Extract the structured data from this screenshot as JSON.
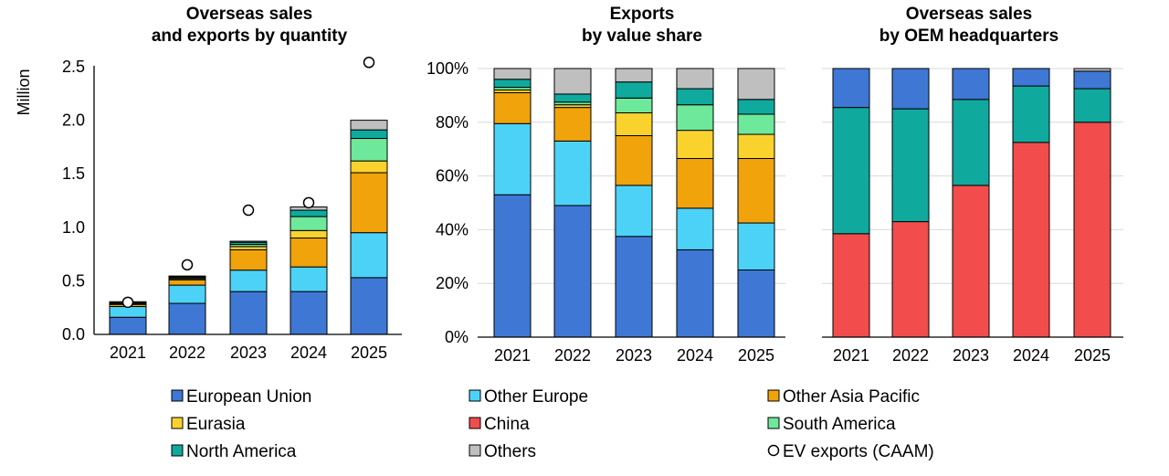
{
  "colors": {
    "european_union": "#3E78D4",
    "other_europe": "#4DD2F7",
    "other_asia_pacific": "#F0A30A",
    "eurasia": "#FAD22E",
    "china": "#F24C4C",
    "south_america": "#6EE89A",
    "north_america": "#10A99E",
    "others": "#BFBFBF",
    "ev_marker_fill": "#FFFFFF",
    "ev_marker_stroke": "#000000",
    "axis": "#000000",
    "grid": "#D9D9D9"
  },
  "legend": [
    {
      "label": "European Union",
      "color_key": "european_union",
      "kind": "square"
    },
    {
      "label": "Other Europe",
      "color_key": "other_europe",
      "kind": "square"
    },
    {
      "label": "Other Asia Pacific",
      "color_key": "other_asia_pacific",
      "kind": "square"
    },
    {
      "label": "Eurasia",
      "color_key": "eurasia",
      "kind": "square"
    },
    {
      "label": "China",
      "color_key": "china",
      "kind": "square"
    },
    {
      "label": "South America",
      "color_key": "south_america",
      "kind": "square"
    },
    {
      "label": "North America",
      "color_key": "north_america",
      "kind": "square"
    },
    {
      "label": "Others",
      "color_key": "others",
      "kind": "square"
    },
    {
      "label": "EV exports (CAAM)",
      "color_key": "ev_marker_fill",
      "kind": "circle"
    }
  ],
  "chart_data": [
    {
      "type": "bar",
      "stacked": true,
      "title_lines": [
        "Overseas sales",
        "and exports by quantity"
      ],
      "ylabel": "Million",
      "ylim": [
        0,
        2.5
      ],
      "yticks": [
        0.0,
        0.5,
        1.0,
        1.5,
        2.0,
        2.5
      ],
      "ytick_labels": [
        "0.0",
        "0.5",
        "1.0",
        "1.5",
        "2.0",
        "2.5"
      ],
      "grid": false,
      "categories": [
        "2021",
        "2022",
        "2023",
        "2024",
        "2025"
      ],
      "series": [
        {
          "name": "European Union",
          "color_key": "european_union",
          "values": [
            0.16,
            0.29,
            0.4,
            0.4,
            0.53
          ]
        },
        {
          "name": "Other Europe",
          "color_key": "other_europe",
          "values": [
            0.1,
            0.17,
            0.2,
            0.23,
            0.42
          ]
        },
        {
          "name": "Other Asia Pacific",
          "color_key": "other_asia_pacific",
          "values": [
            0.02,
            0.05,
            0.19,
            0.27,
            0.56
          ]
        },
        {
          "name": "Eurasia",
          "color_key": "eurasia",
          "values": [
            0.005,
            0.01,
            0.03,
            0.07,
            0.11
          ]
        },
        {
          "name": "South America",
          "color_key": "south_america",
          "values": [
            0.005,
            0.01,
            0.02,
            0.13,
            0.21
          ]
        },
        {
          "name": "North America",
          "color_key": "north_america",
          "values": [
            0.01,
            0.01,
            0.02,
            0.06,
            0.08
          ]
        },
        {
          "name": "Others",
          "color_key": "others",
          "values": [
            0.005,
            0.005,
            0.01,
            0.03,
            0.09
          ]
        }
      ],
      "markers": {
        "name": "EV exports (CAAM)",
        "values": [
          0.3,
          0.65,
          1.16,
          1.23,
          2.54
        ]
      }
    },
    {
      "type": "bar",
      "stacked": true,
      "percent": true,
      "title_lines": [
        "Exports",
        "by value share"
      ],
      "ylabel": "",
      "ylim": [
        0,
        100
      ],
      "yticks": [
        0,
        20,
        40,
        60,
        80,
        100
      ],
      "ytick_labels": [
        "0%",
        "20%",
        "40%",
        "60%",
        "80%",
        "100%"
      ],
      "grid": true,
      "categories": [
        "2021",
        "2022",
        "2023",
        "2024",
        "2025"
      ],
      "series": [
        {
          "name": "European Union",
          "color_key": "european_union",
          "values": [
            53,
            49,
            37.5,
            32.5,
            25
          ]
        },
        {
          "name": "Other Europe",
          "color_key": "other_europe",
          "values": [
            26.5,
            24,
            19,
            15.5,
            17.5
          ]
        },
        {
          "name": "Other Asia Pacific",
          "color_key": "other_asia_pacific",
          "values": [
            11.5,
            12.5,
            18.5,
            18.5,
            24
          ]
        },
        {
          "name": "Eurasia",
          "color_key": "eurasia",
          "values": [
            1,
            1,
            8.5,
            10.5,
            9
          ]
        },
        {
          "name": "South America",
          "color_key": "south_america",
          "values": [
            1,
            1,
            5.5,
            9.5,
            7.5
          ]
        },
        {
          "name": "North America",
          "color_key": "north_america",
          "values": [
            3,
            3,
            6,
            6,
            5.5
          ]
        },
        {
          "name": "Others",
          "color_key": "others",
          "values": [
            4,
            9.5,
            5,
            7.5,
            11.5
          ]
        }
      ]
    },
    {
      "type": "bar",
      "stacked": true,
      "percent": true,
      "title_lines": [
        "Overseas sales",
        "by OEM headquarters"
      ],
      "ylabel": "",
      "ylim": [
        0,
        100
      ],
      "yticks": [
        0,
        20,
        40,
        60,
        80,
        100
      ],
      "grid": true,
      "categories": [
        "2021",
        "2022",
        "2023",
        "2024",
        "2025"
      ],
      "series": [
        {
          "name": "China",
          "color_key": "china",
          "values": [
            38.5,
            43,
            56.5,
            72.5,
            80
          ]
        },
        {
          "name": "North America",
          "color_key": "north_america",
          "values": [
            47,
            42,
            32,
            21,
            12.5
          ]
        },
        {
          "name": "European Union",
          "color_key": "european_union",
          "values": [
            14.5,
            15,
            11.5,
            6.5,
            6.5
          ]
        },
        {
          "name": "Others",
          "color_key": "others",
          "values": [
            0,
            0,
            0,
            0,
            1
          ]
        }
      ]
    }
  ]
}
